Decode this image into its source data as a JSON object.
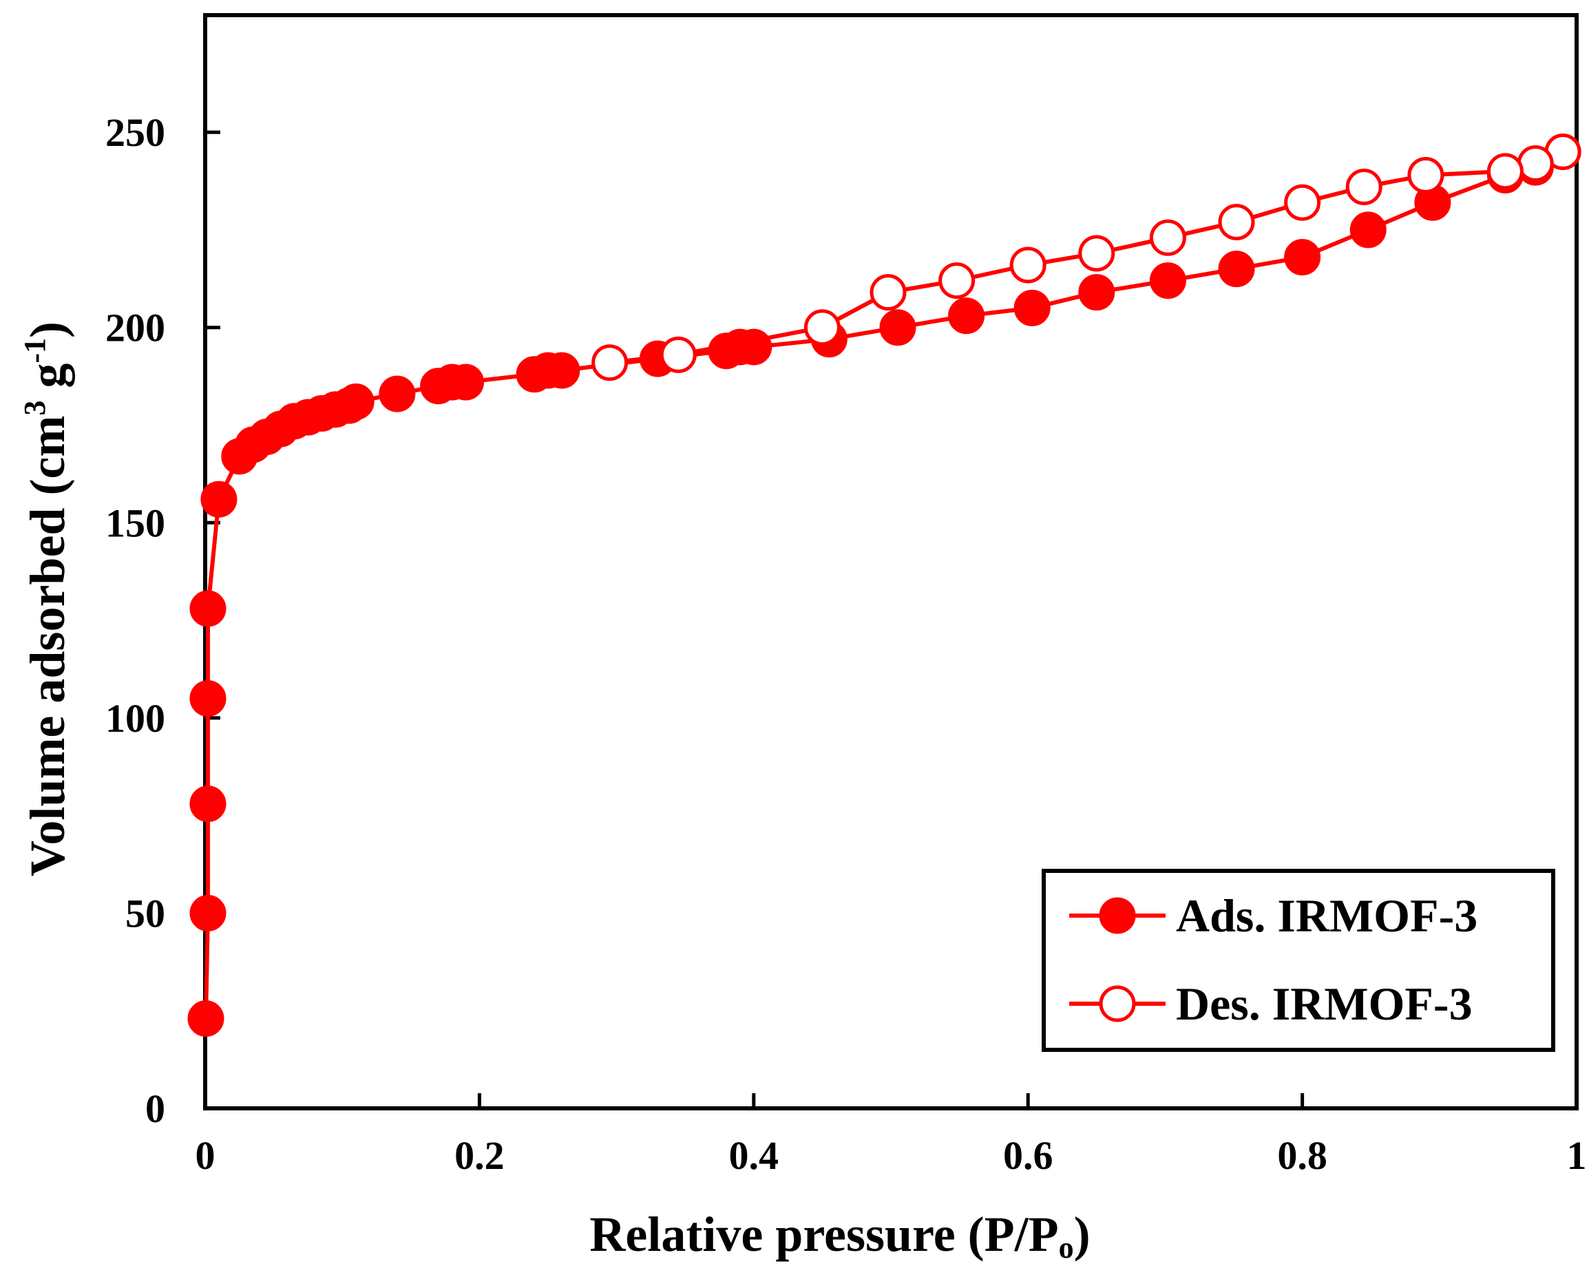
{
  "chart_data": {
    "type": "line",
    "title": "",
    "xlabel": "Relative pressure (P/P",
    "xlabel_sub": "o",
    "xlabel_end": ")",
    "ylabel": "Volume adsorbed (cm",
    "ylabel_sup1": "3",
    "ylabel_mid": " g",
    "ylabel_sup2": "-1",
    "ylabel_end": ")",
    "xlim": [
      0,
      1
    ],
    "ylim": [
      0,
      280
    ],
    "x_ticks": [
      0,
      0.2,
      0.4,
      0.6,
      0.8,
      1
    ],
    "x_tick_labels": [
      "0",
      "0.2",
      "0.4",
      "0.6",
      "0.8",
      "1"
    ],
    "y_ticks": [
      0,
      50,
      100,
      150,
      200,
      250
    ],
    "y_tick_labels": [
      "0",
      "50",
      "100",
      "150",
      "200",
      "250"
    ],
    "grid": false,
    "legend_position": "bottom-right",
    "colors": {
      "series": "#ff0000",
      "axis": "#000000"
    },
    "series": [
      {
        "name": "Ads. IRMOF-3",
        "marker": "filled-circle",
        "x": [
          0.0005,
          0.002,
          0.002,
          0.002,
          0.002,
          0.01,
          0.025,
          0.035,
          0.045,
          0.055,
          0.065,
          0.075,
          0.085,
          0.095,
          0.105,
          0.11,
          0.14,
          0.17,
          0.18,
          0.19,
          0.24,
          0.25,
          0.26,
          0.33,
          0.38,
          0.39,
          0.4,
          0.455,
          0.505,
          0.555,
          0.603,
          0.65,
          0.702,
          0.752,
          0.8,
          0.848,
          0.895,
          0.948,
          0.97,
          0.99
        ],
        "y": [
          23,
          50,
          78,
          105,
          128,
          156,
          167,
          170,
          172,
          174,
          176,
          177,
          178,
          179,
          180,
          181,
          183,
          185,
          186,
          186,
          188,
          189,
          189,
          192,
          194,
          195,
          195,
          197,
          200,
          203,
          205,
          209,
          212,
          215,
          218,
          225,
          232,
          239,
          241,
          245
        ]
      },
      {
        "name": "Des. IRMOF-3",
        "marker": "open-circle",
        "x": [
          0.99,
          0.97,
          0.948,
          0.89,
          0.845,
          0.8,
          0.752,
          0.702,
          0.65,
          0.6,
          0.548,
          0.498,
          0.45,
          0.345,
          0.295
        ],
        "y": [
          245,
          242,
          240,
          239,
          236,
          232,
          227,
          223,
          219,
          216,
          212,
          209,
          200,
          193,
          191
        ]
      }
    ]
  }
}
